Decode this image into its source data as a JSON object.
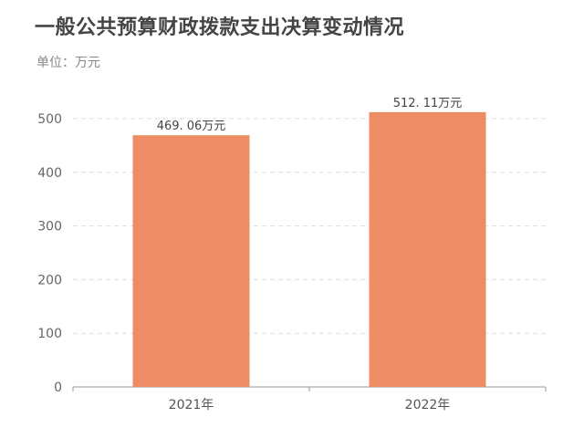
{
  "title": "一般公共预算财政拨款支出决算变动情况",
  "subtitle": "单位：万元",
  "colors": {
    "bar": "#EE8C66",
    "grid": "#dddddd",
    "axis": "#999999"
  },
  "chart_data": {
    "type": "bar",
    "categories": [
      "2021年",
      "2022年"
    ],
    "values": [
      469.06,
      512.11
    ],
    "value_labels": [
      "469. 06万元",
      "512. 11万元"
    ],
    "ylim": [
      0,
      500
    ],
    "yticks": [
      0,
      100,
      200,
      300,
      400,
      500
    ],
    "xlabel": "",
    "ylabel": "",
    "grid": true,
    "legend": "none"
  }
}
